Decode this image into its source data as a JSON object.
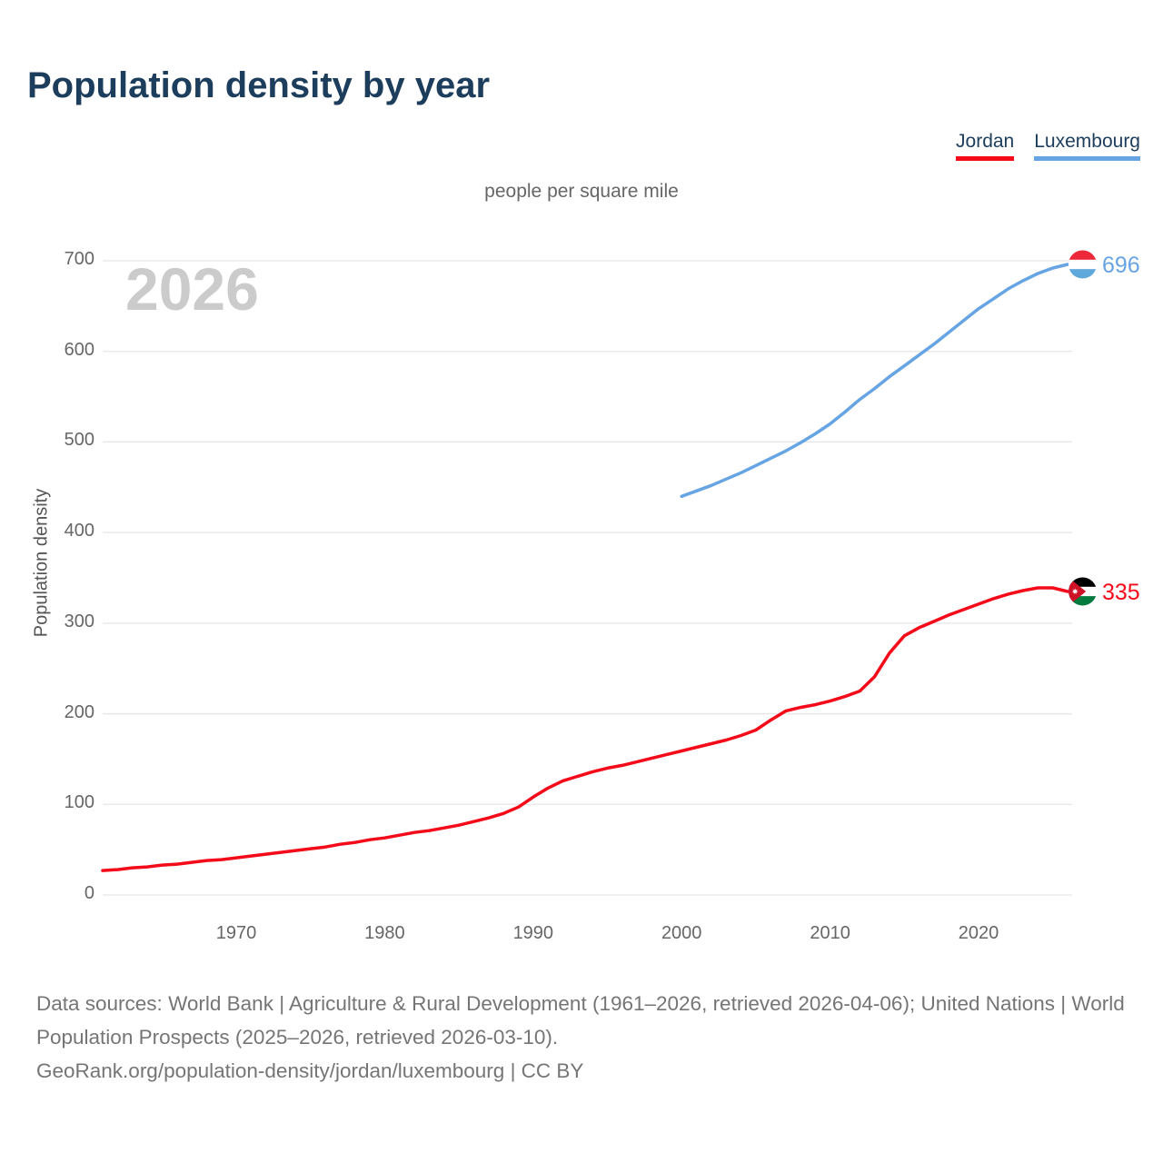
{
  "header": {
    "title": "Population density by year"
  },
  "legend": {
    "items": [
      {
        "label": "Jordan",
        "color": "#f40b19"
      },
      {
        "label": "Luxembourg",
        "color": "#66a4e4"
      }
    ]
  },
  "chart_data": {
    "type": "line",
    "title": "Population density by year",
    "subtitle": "people per square mile",
    "ylabel": "Population density",
    "xlabel": "",
    "watermark": "2026",
    "grid": true,
    "legend_position": "top-right",
    "xlim": [
      1961,
      2026
    ],
    "ylim": [
      0,
      700
    ],
    "yticks": [
      0,
      100,
      200,
      300,
      400,
      500,
      600,
      700
    ],
    "xticks": [
      1970,
      1980,
      1990,
      2000,
      2010,
      2020
    ],
    "series": [
      {
        "name": "Luxembourg",
        "color": "#66a4e4",
        "end_label": "696",
        "end_value": 696,
        "flag": {
          "type": "tricolor-horizontal",
          "colors": [
            "#ed2939",
            "#ffffff",
            "#5fa8dc"
          ]
        },
        "x": [
          2000,
          2001,
          2002,
          2003,
          2004,
          2005,
          2006,
          2007,
          2008,
          2009,
          2010,
          2011,
          2012,
          2013,
          2014,
          2015,
          2016,
          2017,
          2018,
          2019,
          2020,
          2021,
          2022,
          2023,
          2024,
          2025,
          2026
        ],
        "y": [
          440,
          446,
          452,
          459,
          466,
          474,
          482,
          490,
          499,
          509,
          520,
          533,
          547,
          559,
          572,
          584,
          596,
          608,
          621,
          634,
          647,
          658,
          669,
          678,
          686,
          692,
          696
        ]
      },
      {
        "name": "Jordan",
        "color": "#f40b19",
        "end_label": "335",
        "end_value": 335,
        "flag": {
          "type": "jordan",
          "stripes": [
            "#000000",
            "#ffffff",
            "#007a3d"
          ],
          "triangle": "#ce1126",
          "star": "#ffffff"
        },
        "x": [
          1961,
          1962,
          1963,
          1964,
          1965,
          1966,
          1967,
          1968,
          1969,
          1970,
          1971,
          1972,
          1973,
          1974,
          1975,
          1976,
          1977,
          1978,
          1979,
          1980,
          1981,
          1982,
          1983,
          1984,
          1985,
          1986,
          1987,
          1988,
          1989,
          1990,
          1991,
          1992,
          1993,
          1994,
          1995,
          1996,
          1997,
          1998,
          1999,
          2000,
          2001,
          2002,
          2003,
          2004,
          2005,
          2006,
          2007,
          2008,
          2009,
          2010,
          2011,
          2012,
          2013,
          2014,
          2015,
          2016,
          2017,
          2018,
          2019,
          2020,
          2021,
          2022,
          2023,
          2024,
          2025,
          2026
        ],
        "y": [
          27,
          28,
          30,
          31,
          33,
          34,
          36,
          38,
          39,
          41,
          43,
          45,
          47,
          49,
          51,
          53,
          56,
          58,
          61,
          63,
          66,
          69,
          71,
          74,
          77,
          81,
          85,
          90,
          97,
          108,
          118,
          126,
          131,
          136,
          140,
          143,
          147,
          151,
          155,
          159,
          163,
          167,
          171,
          176,
          182,
          193,
          203,
          207,
          210,
          214,
          219,
          225,
          241,
          267,
          286,
          295,
          302,
          309,
          315,
          321,
          327,
          332,
          336,
          339,
          339,
          335
        ]
      }
    ]
  },
  "footer": {
    "sources": "Data sources: World Bank | Agriculture & Rural Development (1961–2026, retrieved 2026-04-06); United Nations | World Population Prospects (2025–2026, retrieved 2026-03-10).",
    "attribution": "GeoRank.org/population-density/jordan/luxembourg | CC BY"
  },
  "colors": {
    "title_text": "#1d3d5c",
    "axis_text": "#666666",
    "gridline": "#e6e6e6",
    "watermark": "#cbcbcb",
    "footer_text": "#757575"
  }
}
